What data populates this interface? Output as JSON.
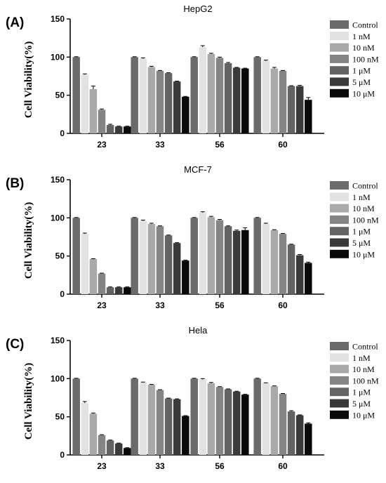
{
  "chart_data": [
    {
      "type": "bar",
      "panel_label": "(A)",
      "title": "HepG2",
      "ylabel": "Cell Viability(%)",
      "xlabel": "",
      "ylim": [
        0,
        150
      ],
      "yticks": [
        "0",
        "50",
        "100",
        "150"
      ],
      "categories": [
        "23",
        "33",
        "56",
        "60"
      ],
      "legend_position": "right",
      "series": [
        {
          "name": "Control",
          "color": "#6b6b6b",
          "values": [
            100,
            100,
            100,
            100
          ],
          "errors": [
            0.5,
            0.5,
            0.5,
            0.5
          ]
        },
        {
          "name": "1 nM",
          "color": "#e2e2e2",
          "values": [
            77,
            98,
            113,
            95
          ],
          "errors": [
            1,
            1,
            2,
            1
          ]
        },
        {
          "name": "10 nM",
          "color": "#a9a9a9",
          "values": [
            58,
            87,
            104,
            85
          ],
          "errors": [
            4,
            1,
            1,
            1.5
          ]
        },
        {
          "name": "100 nM",
          "color": "#858585",
          "values": [
            31,
            82,
            99,
            82
          ],
          "errors": [
            1,
            0.5,
            1,
            0.5
          ]
        },
        {
          "name": "1 μM",
          "color": "#636363",
          "values": [
            11,
            79,
            92,
            62
          ],
          "errors": [
            1,
            0.5,
            1,
            0.5
          ]
        },
        {
          "name": "5 μM",
          "color": "#3a3a3a",
          "values": [
            9,
            68,
            86,
            62
          ],
          "errors": [
            0.5,
            0.5,
            0.5,
            1
          ]
        },
        {
          "name": "10 μM",
          "color": "#0a0a0a",
          "values": [
            9,
            48,
            85,
            44
          ],
          "errors": [
            0.5,
            0.5,
            0.5,
            3
          ]
        }
      ]
    },
    {
      "type": "bar",
      "panel_label": "(B)",
      "title": "MCF-7",
      "ylabel": "Cell Viability(%)",
      "xlabel": "",
      "ylim": [
        0,
        150
      ],
      "yticks": [
        "0",
        "50",
        "100",
        "150"
      ],
      "categories": [
        "23",
        "33",
        "56",
        "60"
      ],
      "legend_position": "right",
      "series": [
        {
          "name": "Control",
          "color": "#6b6b6b",
          "values": [
            100,
            100,
            100,
            100
          ],
          "errors": [
            0.5,
            0.5,
            0.5,
            0.5
          ]
        },
        {
          "name": "1 nM",
          "color": "#e2e2e2",
          "values": [
            79,
            96,
            107,
            92
          ],
          "errors": [
            1,
            1,
            1,
            1
          ]
        },
        {
          "name": "10 nM",
          "color": "#a9a9a9",
          "values": [
            46,
            92,
            101,
            84
          ],
          "errors": [
            0.5,
            1,
            1,
            0.5
          ]
        },
        {
          "name": "100 nM",
          "color": "#858585",
          "values": [
            27,
            89,
            97,
            79
          ],
          "errors": [
            0.5,
            0.5,
            1,
            0.5
          ]
        },
        {
          "name": "1 μM",
          "color": "#636363",
          "values": [
            9,
            77,
            89,
            65
          ],
          "errors": [
            0.5,
            0.5,
            0.5,
            0.5
          ]
        },
        {
          "name": "5 μM",
          "color": "#3a3a3a",
          "values": [
            9,
            67,
            83,
            51
          ],
          "errors": [
            0.5,
            0.5,
            1,
            1
          ]
        },
        {
          "name": "10 μM",
          "color": "#0a0a0a",
          "values": [
            9,
            44,
            84,
            41
          ],
          "errors": [
            0.5,
            0.5,
            3,
            1
          ]
        }
      ]
    },
    {
      "type": "bar",
      "panel_label": "(C)",
      "title": "Hela",
      "ylabel": "Cell Viability(%)",
      "xlabel": "",
      "ylim": [
        0,
        150
      ],
      "yticks": [
        "0",
        "50",
        "100",
        "150"
      ],
      "categories": [
        "23",
        "33",
        "56",
        "60"
      ],
      "legend_position": "right",
      "series": [
        {
          "name": "Control",
          "color": "#6b6b6b",
          "values": [
            100,
            100,
            100,
            100
          ],
          "errors": [
            0.5,
            0.5,
            0.5,
            0.5
          ]
        },
        {
          "name": "1 nM",
          "color": "#e2e2e2",
          "values": [
            68,
            95,
            99,
            94
          ],
          "errors": [
            2,
            0.5,
            1,
            0.5
          ]
        },
        {
          "name": "10 nM",
          "color": "#a9a9a9",
          "values": [
            54,
            92,
            94,
            90
          ],
          "errors": [
            1,
            0.5,
            1,
            0.5
          ]
        },
        {
          "name": "100 nM",
          "color": "#858585",
          "values": [
            26,
            85,
            89,
            80
          ],
          "errors": [
            0.5,
            0.5,
            0.5,
            0.5
          ]
        },
        {
          "name": "1 μM",
          "color": "#636363",
          "values": [
            19,
            74,
            86,
            57
          ],
          "errors": [
            0.5,
            0.5,
            0.5,
            1
          ]
        },
        {
          "name": "5 μM",
          "color": "#3a3a3a",
          "values": [
            15,
            73,
            83,
            52
          ],
          "errors": [
            0.5,
            0.5,
            0.5,
            0.5
          ]
        },
        {
          "name": "10 μM",
          "color": "#0a0a0a",
          "values": [
            9,
            51,
            79,
            41
          ],
          "errors": [
            0.5,
            0.5,
            0.5,
            1
          ]
        }
      ]
    }
  ]
}
